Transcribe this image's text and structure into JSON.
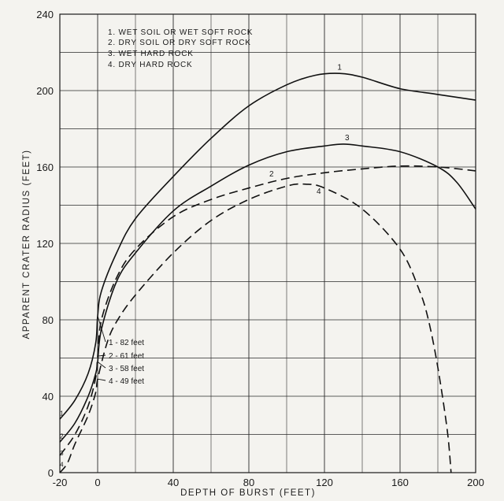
{
  "chart_data": {
    "type": "line",
    "xlabel": "DEPTH OF BURST (FEET)",
    "ylabel": "APPARENT CRATER RADIUS (FEET)",
    "xlim": [
      -20,
      200
    ],
    "ylim": [
      0,
      240
    ],
    "x_ticks": [
      -20,
      0,
      40,
      80,
      120,
      160,
      200
    ],
    "y_ticks": [
      0,
      40,
      80,
      120,
      160,
      200,
      240
    ],
    "x_tick_labels": [
      "-20",
      "0",
      "40",
      "80",
      "120",
      "160",
      "200"
    ],
    "y_tick_labels": [
      "0",
      "40",
      "80",
      "120",
      "160",
      "200",
      "240"
    ],
    "grid": true,
    "legend": {
      "placement": "top-left",
      "entries": [
        "1. WET SOIL OR WET SOFT ROCK",
        "2. DRY SOIL OR DRY SOFT ROCK",
        "3. WET HARD ROCK",
        "4. DRY HARD ROCK"
      ]
    },
    "series": [
      {
        "name": "1",
        "style": "solid",
        "points": [
          [
            -20,
            28
          ],
          [
            -12,
            38
          ],
          [
            -5,
            52
          ],
          [
            -1,
            68
          ],
          [
            0,
            82
          ],
          [
            2,
            95
          ],
          [
            10,
            115
          ],
          [
            20,
            133
          ],
          [
            40,
            155
          ],
          [
            60,
            175
          ],
          [
            80,
            192
          ],
          [
            100,
            203
          ],
          [
            115,
            208
          ],
          [
            128,
            209
          ],
          [
            140,
            207
          ],
          [
            160,
            201
          ],
          [
            180,
            198
          ],
          [
            200,
            195
          ]
        ]
      },
      {
        "name": "2",
        "style": "dashed",
        "points": [
          [
            -20,
            9
          ],
          [
            -12,
            20
          ],
          [
            -5,
            35
          ],
          [
            -1,
            50
          ],
          [
            0,
            61
          ],
          [
            2,
            80
          ],
          [
            10,
            102
          ],
          [
            20,
            117
          ],
          [
            40,
            134
          ],
          [
            60,
            143
          ],
          [
            80,
            149
          ],
          [
            100,
            154
          ],
          [
            120,
            157
          ],
          [
            140,
            159
          ],
          [
            160,
            160.5
          ],
          [
            180,
            160
          ],
          [
            200,
            158
          ]
        ]
      },
      {
        "name": "3",
        "style": "solid",
        "points": [
          [
            -20,
            16
          ],
          [
            -12,
            26
          ],
          [
            -5,
            40
          ],
          [
            -1,
            52
          ],
          [
            0,
            58
          ],
          [
            2,
            75
          ],
          [
            10,
            100
          ],
          [
            20,
            115
          ],
          [
            40,
            137
          ],
          [
            60,
            150
          ],
          [
            80,
            161
          ],
          [
            100,
            168
          ],
          [
            120,
            171
          ],
          [
            130,
            172
          ],
          [
            140,
            171
          ],
          [
            160,
            168
          ],
          [
            180,
            160
          ],
          [
            190,
            152
          ],
          [
            200,
            138
          ]
        ]
      },
      {
        "name": "4",
        "style": "dashed",
        "points": [
          [
            -20,
            0
          ],
          [
            -16,
            5
          ],
          [
            -12,
            15
          ],
          [
            -5,
            30
          ],
          [
            -1,
            42
          ],
          [
            0,
            49
          ],
          [
            5,
            68
          ],
          [
            10,
            79
          ],
          [
            20,
            93
          ],
          [
            40,
            115
          ],
          [
            60,
            132
          ],
          [
            80,
            143
          ],
          [
            100,
            150
          ],
          [
            110,
            151
          ],
          [
            120,
            149
          ],
          [
            140,
            138
          ],
          [
            160,
            117
          ],
          [
            170,
            96
          ],
          [
            175,
            80
          ],
          [
            180,
            55
          ],
          [
            185,
            22
          ],
          [
            187,
            0
          ]
        ]
      }
    ],
    "annotations": [
      "1 - 82 feet",
      "2 - 61 feet",
      "3 - 58 feet",
      "4 - 49 feet"
    ],
    "annotation_y_values": [
      82,
      61,
      58,
      49
    ],
    "curve_labels": [
      "1",
      "2",
      "3",
      "4"
    ],
    "left_end_labels": [
      "1",
      "2",
      "3",
      "4"
    ]
  }
}
